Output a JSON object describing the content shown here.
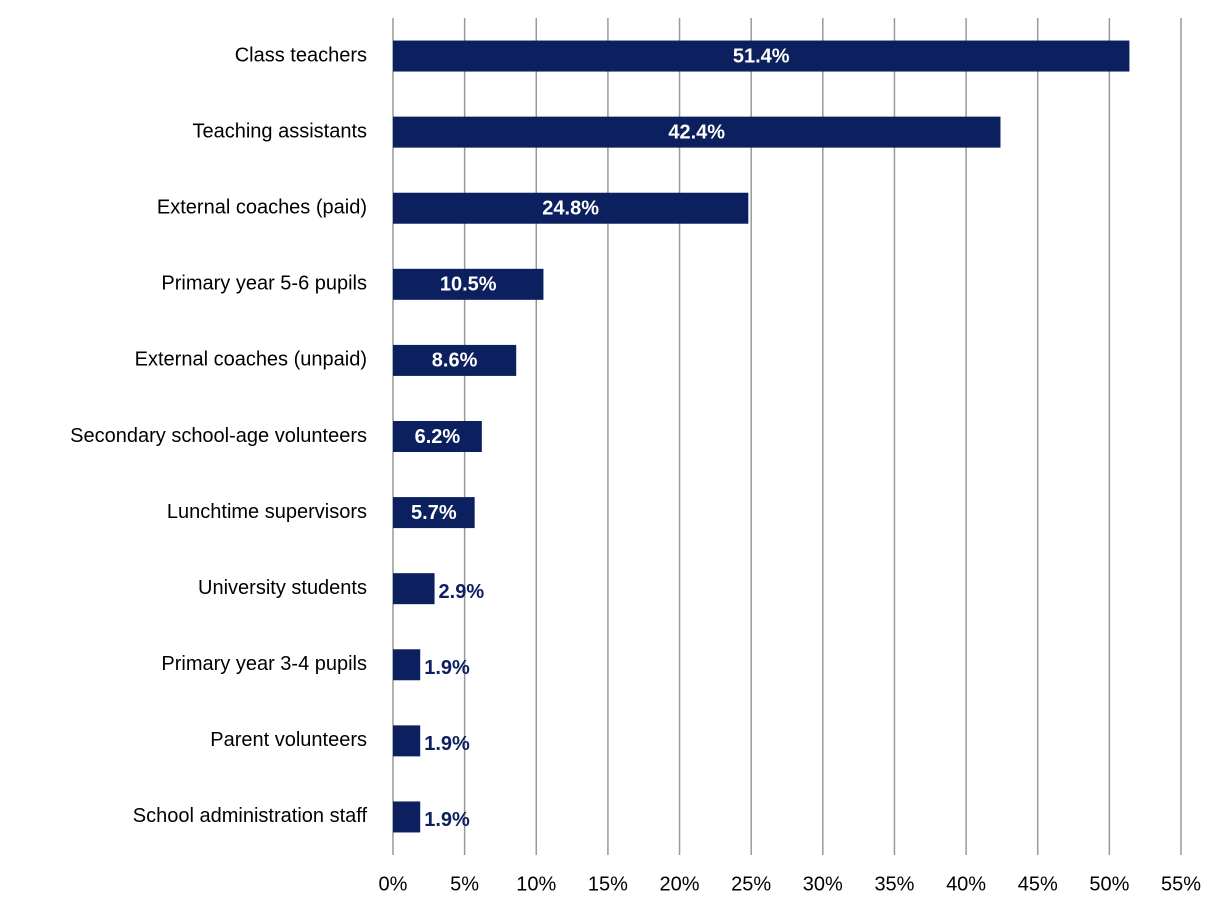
{
  "chart_data": {
    "type": "barh",
    "categories": [
      "Class teachers",
      "Teaching assistants",
      "External coaches (paid)",
      "Primary year 5-6 pupils",
      "External coaches (unpaid)",
      "Secondary school-age volunteers",
      "Lunchtime supervisors",
      "University students",
      "Primary year 3-4 pupils",
      "Parent volunteers",
      "School administration staff"
    ],
    "values": [
      51.4,
      42.4,
      24.8,
      10.5,
      8.6,
      6.2,
      5.7,
      2.9,
      1.9,
      1.9,
      1.9
    ],
    "value_labels": [
      "51.4%",
      "42.4%",
      "24.8%",
      "10.5%",
      "8.6%",
      "6.2%",
      "5.7%",
      "2.9%",
      "1.9%",
      "1.9%",
      "1.9%"
    ],
    "color": "#0c1f5e",
    "xlim": [
      0,
      55
    ],
    "xticks": [
      {
        "value": 0,
        "label": "0%"
      },
      {
        "value": 5,
        "label": "5%"
      },
      {
        "value": 10,
        "label": "10%"
      },
      {
        "value": 15,
        "label": "15%"
      },
      {
        "value": 20,
        "label": "20%"
      },
      {
        "value": 25,
        "label": "25%"
      },
      {
        "value": 30,
        "label": "30%"
      },
      {
        "value": 35,
        "label": "35%"
      },
      {
        "value": 40,
        "label": "40%"
      },
      {
        "value": 45,
        "label": "45%"
      },
      {
        "value": 50,
        "label": "50%"
      },
      {
        "value": 55,
        "label": "55%"
      }
    ],
    "grid": true
  }
}
